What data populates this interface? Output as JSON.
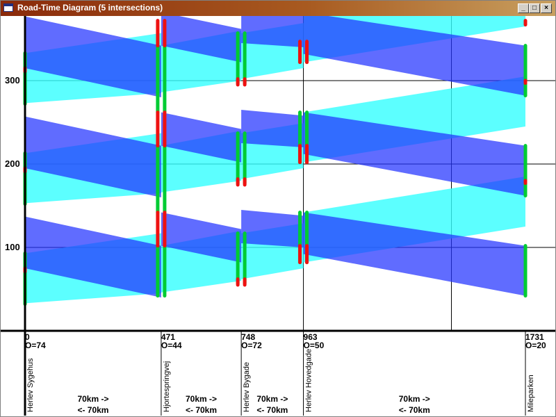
{
  "window": {
    "title": "Road-Time Diagram (5 intersections)",
    "minimize_icon": "minimize-icon",
    "maximize_icon": "maximize-icon",
    "close_icon": "close-icon"
  },
  "chart_data": {
    "type": "road-time diagram",
    "title": "",
    "xlabel": "",
    "ylabel": "",
    "y_ticks": [
      100,
      200,
      300
    ],
    "ylim": [
      0,
      375
    ],
    "cycle_time": 120,
    "intersections": [
      {
        "position": 0,
        "position_label": "0",
        "offset_label": "O=74",
        "name": "Herlev Sygehus"
      },
      {
        "position": 471,
        "position_label": "471",
        "offset_label": "O=44",
        "name": "Hjortespringvej"
      },
      {
        "position": 748,
        "position_label": "748",
        "offset_label": "O=72",
        "name": "Herlev Bygade"
      },
      {
        "position": 963,
        "position_label": "963",
        "offset_label": "O=50",
        "name": "Herlev Hovedgade"
      },
      {
        "position": 1731,
        "position_label": "1731",
        "offset_label": "O=20",
        "name": "Mileparken"
      }
    ],
    "gridlines_x": [
      963,
      1475
    ],
    "segments": [
      {
        "forward": "70km ->",
        "backward": "<- 70km"
      },
      {
        "forward": "70km ->",
        "backward": "<- 70km"
      },
      {
        "forward": "70km ->",
        "backward": "<- 70km"
      },
      {
        "forward": "70km ->",
        "backward": "<- 70km"
      }
    ],
    "signal_colors": {
      "green": "#00cc33",
      "red": "#ee1111"
    },
    "band_colors": {
      "forward": "#33ffff",
      "backward": "#2233ff"
    },
    "signal_timing": [
      {
        "greens": [
          [
            32,
            93
          ],
          [
            152,
            213
          ],
          [
            272,
            333
          ]
        ],
        "reds": [
          [
            71,
            75
          ],
          [
            191,
            195
          ],
          [
            311,
            315
          ]
        ]
      },
      {
        "greens": [
          [
            42,
            102
          ],
          [
            142,
            222
          ],
          [
            262,
            342
          ]
        ],
        "reds": [
          [
            102,
            142
          ],
          [
            222,
            262
          ],
          [
            342,
            372
          ]
        ]
      },
      {
        "greens": [
          [
            57,
            117
          ],
          [
            177,
            237
          ],
          [
            297,
            357
          ]
        ],
        "reds": [
          [
            55,
            62
          ],
          [
            175,
            182
          ],
          [
            295,
            302
          ]
        ]
      },
      {
        "greens": [
          [
            82,
            142
          ],
          [
            202,
            262
          ],
          [
            322,
            342
          ]
        ],
        "reds": [
          [
            82,
            102
          ],
          [
            202,
            222
          ],
          [
            322,
            347
          ]
        ]
      },
      {
        "greens": [
          [
            42,
            102
          ],
          [
            162,
            222
          ],
          [
            282,
            342
          ]
        ],
        "reds": [
          [
            367,
            372
          ],
          [
            297,
            300
          ],
          [
            177,
            180
          ]
        ]
      }
    ],
    "forward_bands": [
      {
        "t1_low": 72,
        "t1_high": 137,
        "t2_low": 40,
        "t2_high": 355
      },
      {
        "from": 1,
        "to": 2,
        "t1_low": 40,
        "t1_high": 120,
        "t2_low": 56,
        "t2_high": 136
      },
      {
        "from": 1,
        "to": 2,
        "t1_low": 160,
        "t1_high": 240,
        "t2_low": 176,
        "t2_high": 256
      },
      {
        "from": 1,
        "to": 2,
        "t1_low": 280,
        "t1_high": 360,
        "t2_low": 296,
        "t2_high": 376
      }
    ],
    "annotations_y_tick_labels": [
      "100",
      "200",
      "300"
    ]
  }
}
